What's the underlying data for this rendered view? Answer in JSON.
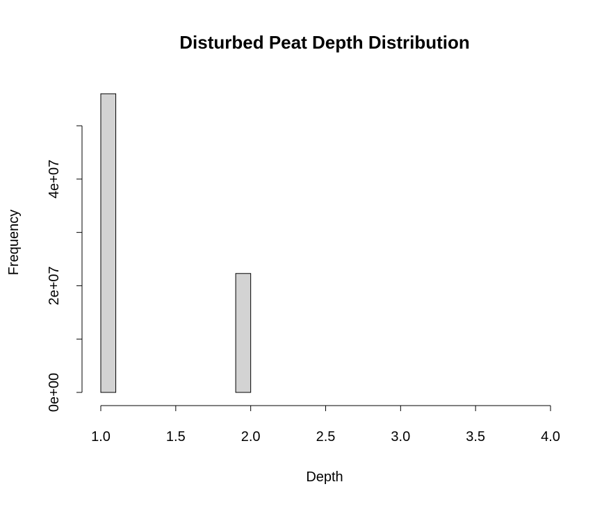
{
  "chart_data": {
    "type": "bar",
    "title": "Disturbed Peat Depth Distribution",
    "xlabel": "Depth",
    "ylabel": "Frequency",
    "bin_width": 0.1,
    "xlim": [
      1.0,
      4.0
    ],
    "ylim": [
      0,
      56000000
    ],
    "bins": [
      {
        "start": 1.0,
        "end": 1.1,
        "count": 56000000
      },
      {
        "start": 1.1,
        "end": 1.2,
        "count": 0
      },
      {
        "start": 1.2,
        "end": 1.3,
        "count": 0
      },
      {
        "start": 1.3,
        "end": 1.4,
        "count": 0
      },
      {
        "start": 1.4,
        "end": 1.5,
        "count": 0
      },
      {
        "start": 1.5,
        "end": 1.6,
        "count": 0
      },
      {
        "start": 1.6,
        "end": 1.7,
        "count": 0
      },
      {
        "start": 1.7,
        "end": 1.8,
        "count": 0
      },
      {
        "start": 1.8,
        "end": 1.9,
        "count": 0
      },
      {
        "start": 1.9,
        "end": 2.0,
        "count": 22300000
      },
      {
        "start": 2.0,
        "end": 2.1,
        "count": 0
      },
      {
        "start": 2.1,
        "end": 2.2,
        "count": 0
      },
      {
        "start": 2.2,
        "end": 2.3,
        "count": 0
      },
      {
        "start": 2.3,
        "end": 2.4,
        "count": 0
      },
      {
        "start": 2.4,
        "end": 2.5,
        "count": 0
      },
      {
        "start": 2.5,
        "end": 2.6,
        "count": 0
      },
      {
        "start": 2.6,
        "end": 2.7,
        "count": 0
      },
      {
        "start": 2.7,
        "end": 2.8,
        "count": 0
      },
      {
        "start": 2.8,
        "end": 2.9,
        "count": 0
      },
      {
        "start": 2.9,
        "end": 3.0,
        "count": 0
      },
      {
        "start": 3.0,
        "end": 3.1,
        "count": 0
      },
      {
        "start": 3.1,
        "end": 3.2,
        "count": 0
      },
      {
        "start": 3.2,
        "end": 3.3,
        "count": 0
      },
      {
        "start": 3.3,
        "end": 3.4,
        "count": 0
      },
      {
        "start": 3.4,
        "end": 3.5,
        "count": 0
      },
      {
        "start": 3.5,
        "end": 3.6,
        "count": 0
      },
      {
        "start": 3.6,
        "end": 3.7,
        "count": 0
      },
      {
        "start": 3.7,
        "end": 3.8,
        "count": 0
      },
      {
        "start": 3.8,
        "end": 3.9,
        "count": 0
      },
      {
        "start": 3.9,
        "end": 4.0,
        "count": 0
      }
    ],
    "x_ticks": [
      {
        "value": 1.0,
        "label": "1.0"
      },
      {
        "value": 1.5,
        "label": "1.5"
      },
      {
        "value": 2.0,
        "label": "2.0"
      },
      {
        "value": 2.5,
        "label": "2.5"
      },
      {
        "value": 3.0,
        "label": "3.0"
      },
      {
        "value": 3.5,
        "label": "3.5"
      },
      {
        "value": 4.0,
        "label": "4.0"
      }
    ],
    "y_ticks": [
      {
        "value": 0,
        "label": "0e+00"
      },
      {
        "value": 10000000,
        "label": ""
      },
      {
        "value": 20000000,
        "label": "2e+07"
      },
      {
        "value": 30000000,
        "label": ""
      },
      {
        "value": 40000000,
        "label": "4e+07"
      },
      {
        "value": 50000000,
        "label": ""
      }
    ],
    "bar_fill": "#d3d3d3",
    "grid": false,
    "legend": "none"
  }
}
